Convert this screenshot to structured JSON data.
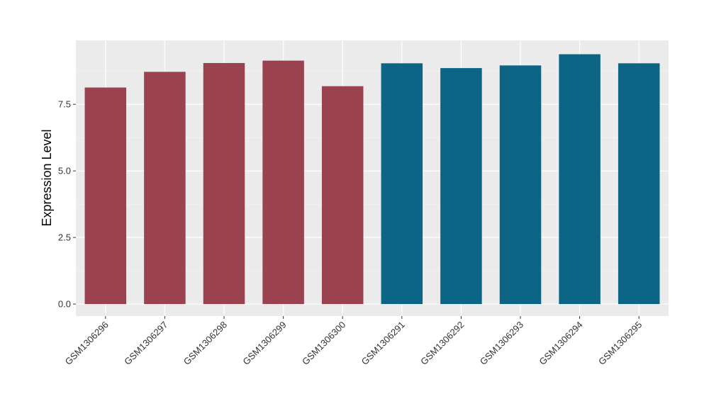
{
  "chart_data": {
    "type": "bar",
    "title": "",
    "xlabel": "",
    "ylabel": "Expression Level",
    "categories": [
      "GSM1306296",
      "GSM1306297",
      "GSM1306298",
      "GSM1306299",
      "GSM1306300",
      "GSM1306291",
      "GSM1306292",
      "GSM1306293",
      "GSM1306294",
      "GSM1306295"
    ],
    "values": [
      8.13,
      8.72,
      9.05,
      9.14,
      8.18,
      9.04,
      8.86,
      8.96,
      9.38,
      9.04
    ],
    "bar_colors": [
      "#9a4250",
      "#9a4250",
      "#9a4250",
      "#9a4250",
      "#9a4250",
      "#0c6585",
      "#0c6585",
      "#0c6585",
      "#0c6585",
      "#0c6585"
    ],
    "yticks": [
      0.0,
      2.5,
      5.0,
      7.5
    ],
    "ytick_labels": [
      "0.0",
      "2.5",
      "5.0",
      "7.5"
    ],
    "ylim": [
      -0.45,
      9.9
    ],
    "grid": true,
    "legend": "none"
  },
  "colors": {
    "panel_background": "#ebebeb",
    "grid_major": "#ffffff",
    "grid_minor": "#f5f5f5"
  }
}
